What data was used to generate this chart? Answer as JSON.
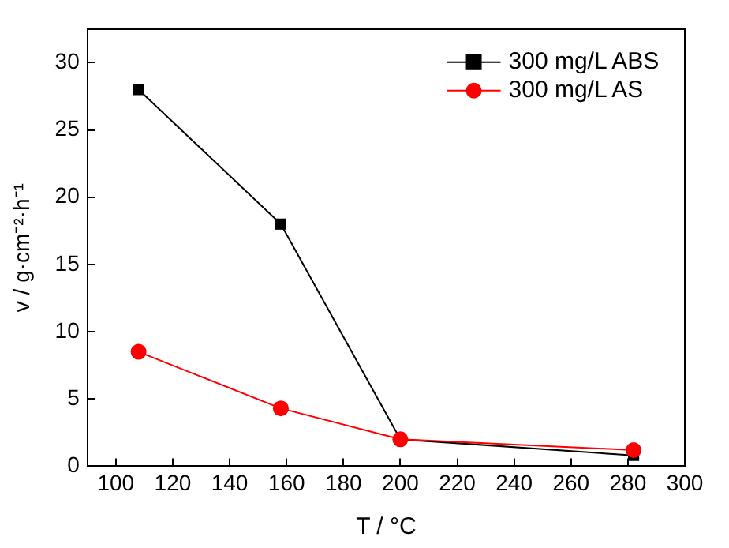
{
  "chart_data": {
    "type": "line",
    "xlabel": "T / °C",
    "ylabel": "v / g·cm⁻²·h⁻¹",
    "x": [
      108,
      158,
      200,
      282
    ],
    "series": [
      {
        "name": "300 mg/L ABS",
        "color": "#000000",
        "marker": "square",
        "values": [
          28,
          18,
          2,
          0.8
        ]
      },
      {
        "name": "300 mg/L AS",
        "color": "#ff0000",
        "marker": "circle",
        "values": [
          8.5,
          4.3,
          2.0,
          1.2
        ]
      }
    ],
    "xlim": [
      90,
      300
    ],
    "xticks": [
      100,
      120,
      140,
      160,
      180,
      200,
      220,
      240,
      260,
      280,
      300
    ],
    "ylim": [
      0,
      32.5
    ],
    "yticks": [
      0,
      5,
      10,
      15,
      20,
      25,
      30
    ],
    "grid": false,
    "legend": "top right",
    "line_style": "solid"
  }
}
